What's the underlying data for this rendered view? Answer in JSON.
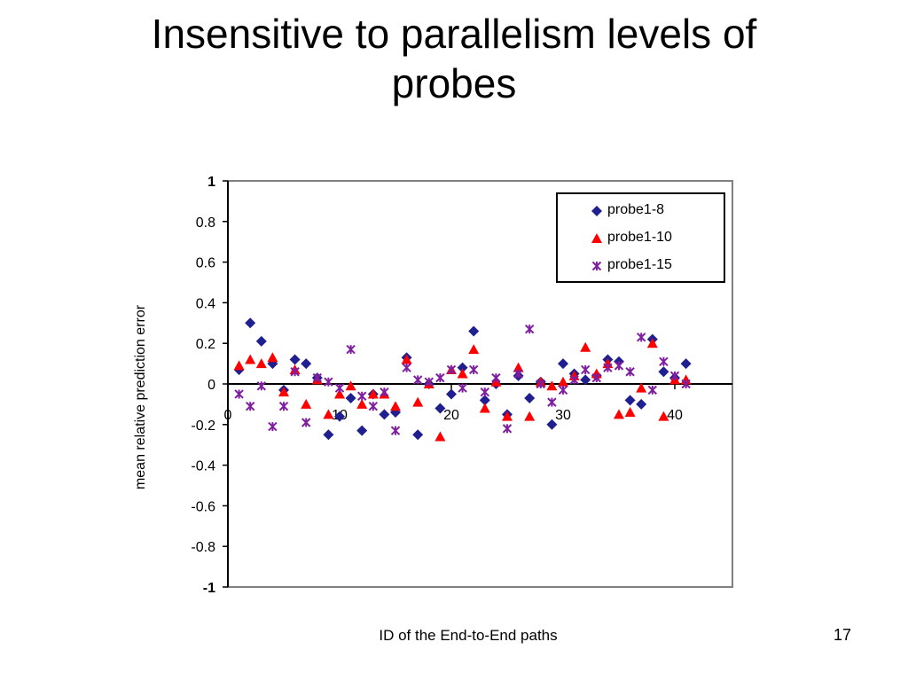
{
  "slide": {
    "title_line1": "Insensitive to parallelism levels of",
    "title_line2": "probes",
    "number": "17"
  },
  "colors": {
    "probe1_8": "#1f1f8f",
    "probe1_10": "#ff0000",
    "probe1_15": "#7f1f9f",
    "axis": "#000000",
    "frame": "#808080"
  },
  "chart_data": {
    "type": "scatter",
    "xlabel": "ID of the End-to-End paths",
    "ylabel": "mean relative prediction error",
    "xlim": [
      0,
      44
    ],
    "ylim": [
      -1,
      1
    ],
    "x_ticks": [
      "0",
      "10",
      "20",
      "30",
      "40"
    ],
    "x_tick_values": [
      0,
      10,
      20,
      30,
      40
    ],
    "y_ticks": [
      "1",
      "0.8",
      "0.6",
      "0.4",
      "0.2",
      "0",
      "-0.2",
      "-0.4",
      "-0.6",
      "-0.8",
      "-1"
    ],
    "y_tick_values": [
      1,
      0.8,
      0.6,
      0.4,
      0.2,
      0,
      -0.2,
      -0.4,
      -0.6,
      -0.8,
      -1
    ],
    "grid": false,
    "legend_position": "top-right",
    "series": [
      {
        "name": "probe1-8",
        "marker": "diamond",
        "points": [
          [
            1,
            0.07
          ],
          [
            2,
            0.3
          ],
          [
            3,
            0.21
          ],
          [
            4,
            0.1
          ],
          [
            5,
            -0.03
          ],
          [
            6,
            0.12
          ],
          [
            7,
            0.1
          ],
          [
            8,
            0.03
          ],
          [
            9,
            -0.25
          ],
          [
            10,
            -0.16
          ],
          [
            11,
            -0.07
          ],
          [
            12,
            -0.23
          ],
          [
            13,
            -0.05
          ],
          [
            14,
            -0.15
          ],
          [
            15,
            -0.14
          ],
          [
            16,
            0.13
          ],
          [
            17,
            -0.25
          ],
          [
            18,
            0.0
          ],
          [
            19,
            -0.12
          ],
          [
            20,
            -0.05
          ],
          [
            21,
            0.08
          ],
          [
            22,
            0.26
          ],
          [
            23,
            -0.08
          ],
          [
            24,
            0.0
          ],
          [
            25,
            -0.15
          ],
          [
            26,
            0.04
          ],
          [
            27,
            -0.07
          ],
          [
            28,
            0.01
          ],
          [
            29,
            -0.2
          ],
          [
            30,
            0.1
          ],
          [
            31,
            0.05
          ],
          [
            32,
            0.02
          ],
          [
            33,
            0.04
          ],
          [
            34,
            0.12
          ],
          [
            35,
            0.11
          ],
          [
            36,
            -0.08
          ],
          [
            37,
            -0.1
          ],
          [
            38,
            0.22
          ],
          [
            39,
            0.06
          ],
          [
            40,
            0.03
          ],
          [
            41,
            0.1
          ]
        ]
      },
      {
        "name": "probe1-10",
        "marker": "triangle",
        "points": [
          [
            1,
            0.09
          ],
          [
            2,
            0.12
          ],
          [
            3,
            0.1
          ],
          [
            4,
            0.13
          ],
          [
            5,
            -0.04
          ],
          [
            6,
            0.07
          ],
          [
            7,
            -0.1
          ],
          [
            8,
            0.02
          ],
          [
            9,
            -0.15
          ],
          [
            10,
            -0.05
          ],
          [
            11,
            -0.01
          ],
          [
            12,
            -0.1
          ],
          [
            13,
            -0.05
          ],
          [
            14,
            -0.05
          ],
          [
            15,
            -0.11
          ],
          [
            16,
            0.12
          ],
          [
            17,
            -0.09
          ],
          [
            18,
            0.0
          ],
          [
            19,
            -0.26
          ],
          [
            20,
            0.07
          ],
          [
            21,
            0.05
          ],
          [
            22,
            0.17
          ],
          [
            23,
            -0.12
          ],
          [
            24,
            0.01
          ],
          [
            25,
            -0.16
          ],
          [
            26,
            0.08
          ],
          [
            27,
            -0.16
          ],
          [
            28,
            0.01
          ],
          [
            29,
            -0.01
          ],
          [
            30,
            0.01
          ],
          [
            31,
            0.04
          ],
          [
            32,
            0.18
          ],
          [
            33,
            0.05
          ],
          [
            34,
            0.1
          ],
          [
            35,
            -0.15
          ],
          [
            36,
            -0.14
          ],
          [
            37,
            -0.02
          ],
          [
            38,
            0.2
          ],
          [
            39,
            -0.16
          ],
          [
            40,
            0.02
          ],
          [
            41,
            0.02
          ]
        ]
      },
      {
        "name": "probe1-15",
        "marker": "x",
        "points": [
          [
            1,
            -0.05
          ],
          [
            2,
            -0.11
          ],
          [
            3,
            -0.01
          ],
          [
            4,
            -0.21
          ],
          [
            5,
            -0.11
          ],
          [
            6,
            0.06
          ],
          [
            7,
            -0.19
          ],
          [
            8,
            0.03
          ],
          [
            9,
            0.01
          ],
          [
            10,
            -0.02
          ],
          [
            11,
            0.17
          ],
          [
            12,
            -0.06
          ],
          [
            13,
            -0.11
          ],
          [
            14,
            -0.04
          ],
          [
            15,
            -0.23
          ],
          [
            16,
            0.08
          ],
          [
            17,
            0.02
          ],
          [
            18,
            0.01
          ],
          [
            19,
            0.03
          ],
          [
            20,
            0.07
          ],
          [
            21,
            -0.02
          ],
          [
            22,
            0.07
          ],
          [
            23,
            -0.04
          ],
          [
            24,
            0.03
          ],
          [
            25,
            -0.22
          ],
          [
            26,
            0.05
          ],
          [
            27,
            0.27
          ],
          [
            28,
            0.0
          ],
          [
            29,
            -0.09
          ],
          [
            30,
            -0.03
          ],
          [
            31,
            0.02
          ],
          [
            32,
            0.07
          ],
          [
            33,
            0.03
          ],
          [
            34,
            0.08
          ],
          [
            35,
            0.09
          ],
          [
            36,
            0.06
          ],
          [
            37,
            0.23
          ],
          [
            38,
            -0.03
          ],
          [
            39,
            0.11
          ],
          [
            40,
            0.04
          ],
          [
            41,
            0.0
          ]
        ]
      }
    ]
  }
}
